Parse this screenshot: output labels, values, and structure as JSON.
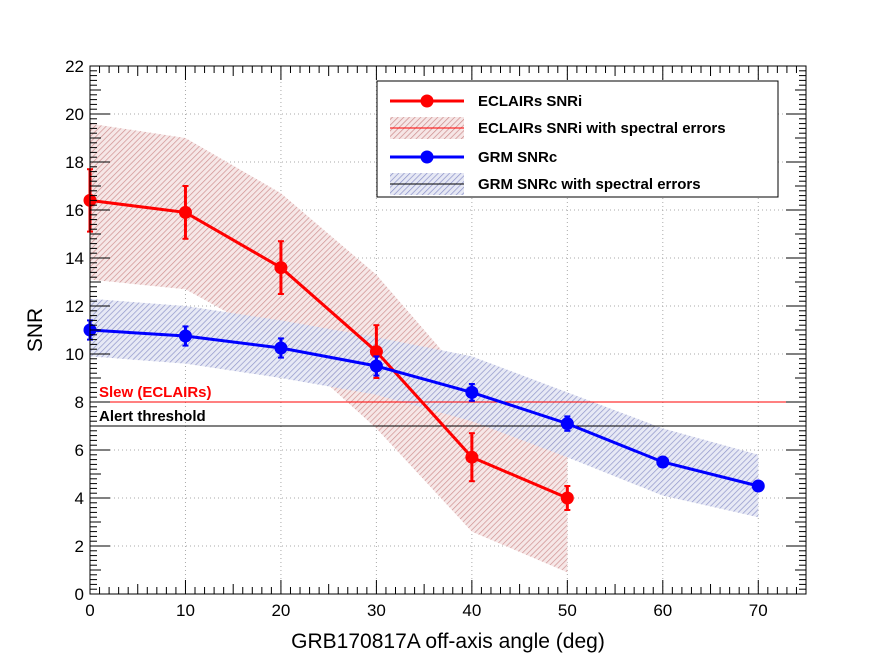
{
  "chart_data": {
    "type": "line",
    "title": "",
    "xlabel": "GRB170817A off-axis angle (deg)",
    "ylabel": "SNR",
    "xlim": [
      0,
      75
    ],
    "ylim": [
      0,
      22
    ],
    "xticks": [
      0,
      10,
      20,
      30,
      40,
      50,
      60,
      70
    ],
    "yticks": [
      0,
      2,
      4,
      6,
      8,
      10,
      12,
      14,
      16,
      18,
      20,
      22
    ],
    "grid": true,
    "legend_position": "top-right",
    "colors": {
      "eclairs": "#ff0000",
      "eclairs_band": "#cc8a8a",
      "grm": "#0000ff",
      "grm_band": "#8a90c8",
      "alert": "#000000"
    },
    "series": [
      {
        "name": "ECLAIRs SNRi",
        "x": [
          0,
          10,
          20,
          30,
          40,
          50
        ],
        "y": [
          16.4,
          15.9,
          13.6,
          10.1,
          5.7,
          4.0
        ],
        "yerr": [
          1.3,
          1.1,
          1.1,
          1.1,
          1.0,
          0.5
        ]
      },
      {
        "name": "GRM SNRc",
        "x": [
          0,
          10,
          20,
          30,
          40,
          50,
          60,
          70
        ],
        "y": [
          11.0,
          10.75,
          10.25,
          9.5,
          8.4,
          7.1,
          5.5,
          4.5
        ],
        "yerr": [
          0.4,
          0.4,
          0.4,
          0.4,
          0.35,
          0.3,
          0.2,
          0.15
        ]
      }
    ],
    "bands": [
      {
        "name": "ECLAIRs SNRi with spectral errors",
        "x": [
          0,
          10,
          20,
          30,
          40,
          50
        ],
        "upper": [
          19.6,
          19.0,
          16.7,
          13.3,
          8.7,
          6.6
        ],
        "lower": [
          13.1,
          12.7,
          10.5,
          6.9,
          2.6,
          0.9
        ]
      },
      {
        "name": "GRM SNRc with spectral errors",
        "x": [
          0,
          10,
          20,
          30,
          40,
          50,
          60,
          70
        ],
        "upper": [
          12.3,
          12.0,
          11.4,
          10.7,
          9.9,
          8.4,
          6.9,
          5.8
        ],
        "lower": [
          9.9,
          9.6,
          9.0,
          8.3,
          7.2,
          5.7,
          4.1,
          3.2
        ]
      }
    ],
    "thresholds": [
      {
        "label": "Slew (ECLAIRs)",
        "y": 8,
        "color": "#ff0000"
      },
      {
        "label": "Alert threshold",
        "y": 7,
        "color": "#000000"
      }
    ]
  }
}
